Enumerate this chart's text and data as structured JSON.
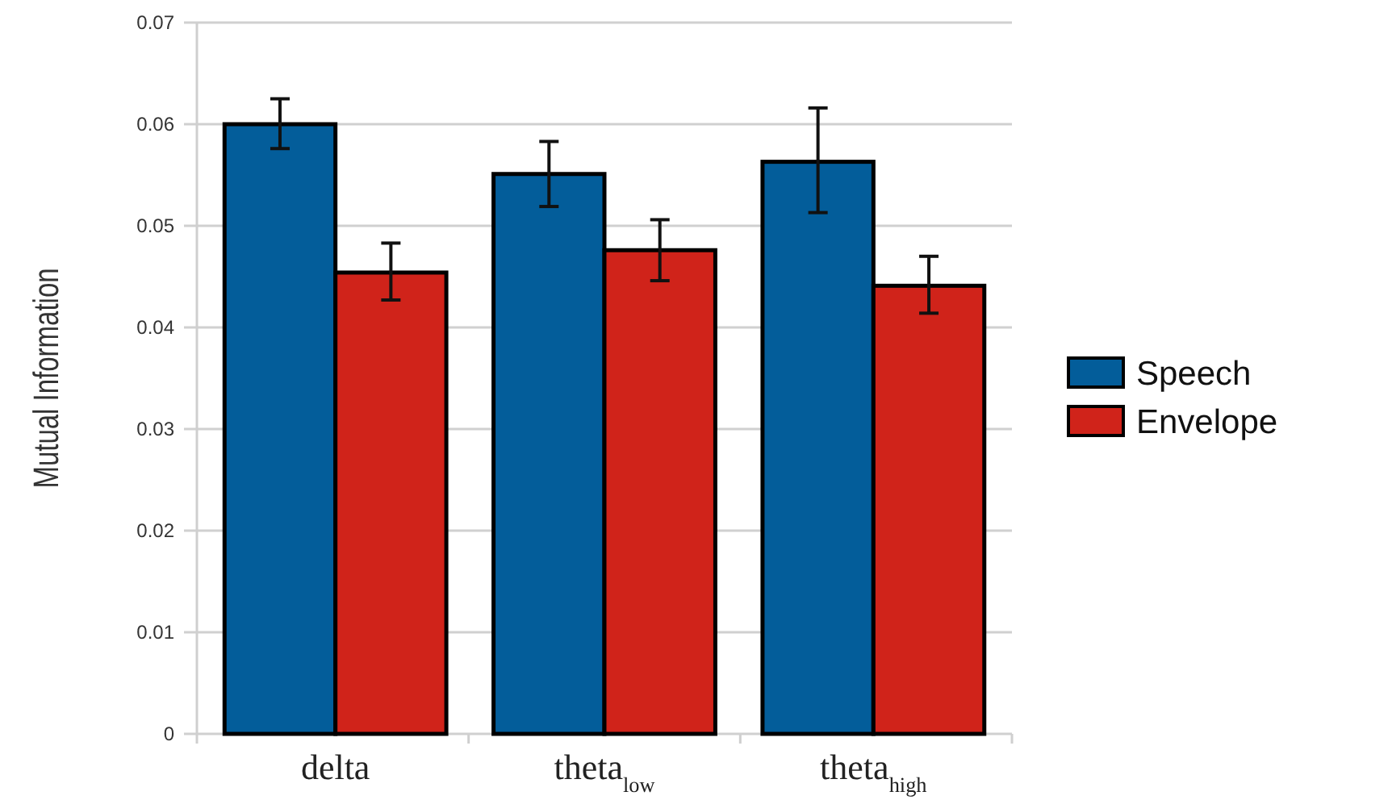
{
  "chart_data": {
    "type": "bar",
    "ylabel": "Mutual Information",
    "categories": [
      "delta",
      "theta$_{low}$",
      "theta$_{high}$"
    ],
    "series": [
      {
        "name": "Speech",
        "color": "#035d9a",
        "values": [
          0.06,
          0.0551,
          0.0563
        ],
        "errors": [
          [
            0.0576,
            0.0625
          ],
          [
            0.0519,
            0.0583
          ],
          [
            0.0513,
            0.0616
          ]
        ]
      },
      {
        "name": "Envelope",
        "color": "#d0231a",
        "values": [
          0.0454,
          0.0476,
          0.0441
        ],
        "errors": [
          [
            0.0427,
            0.0483
          ],
          [
            0.0446,
            0.0506
          ],
          [
            0.0414,
            0.047
          ]
        ]
      }
    ],
    "ylim": [
      0,
      0.07
    ],
    "yticks": [
      0,
      0.01,
      0.02,
      0.03,
      0.04,
      0.05,
      0.06,
      0.07
    ],
    "grid": "y",
    "legend": "right"
  }
}
